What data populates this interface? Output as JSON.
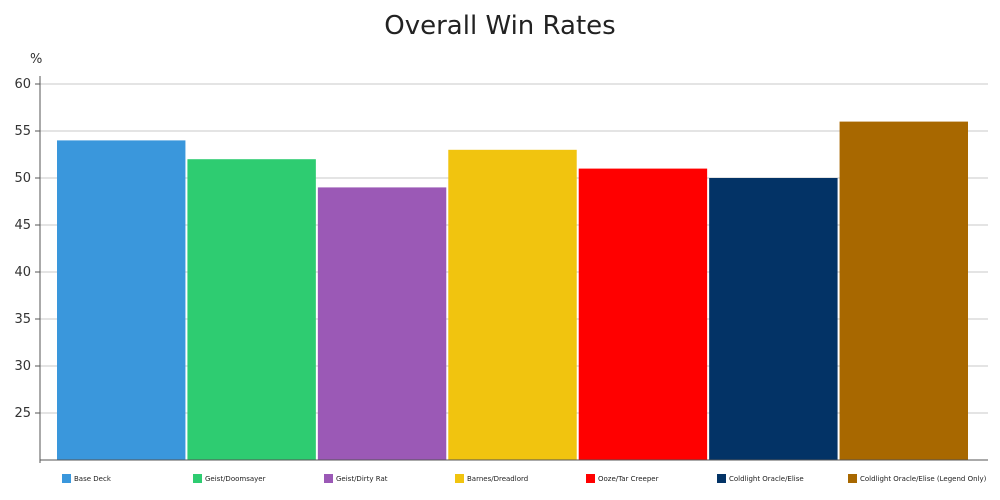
{
  "chart_data": {
    "type": "bar",
    "title": "Overall Win Rates",
    "ylabel": "%",
    "xlabel": "",
    "ylim": [
      20,
      60
    ],
    "yticks": [
      25,
      30,
      35,
      40,
      45,
      50,
      55,
      60
    ],
    "grid": true,
    "legend_position": "bottom",
    "series": [
      {
        "name": "Base Deck",
        "value": 54,
        "color": "#3a97dc"
      },
      {
        "name": "Geist/Doomsayer",
        "value": 52,
        "color": "#2ecc71"
      },
      {
        "name": "Geist/Dirty Rat",
        "value": 49,
        "color": "#9b59b6"
      },
      {
        "name": "Barnes/Dreadlord",
        "value": 53,
        "color": "#f1c40f"
      },
      {
        "name": "Ooze/Tar Creeper",
        "value": 51,
        "color": "#ff0000"
      },
      {
        "name": "Coldlight Oracle/Elise",
        "value": 50,
        "color": "#033366"
      },
      {
        "name": "Coldlight Oracle/Elise (Legend Only)",
        "value": 56,
        "color": "#a86800"
      }
    ]
  }
}
